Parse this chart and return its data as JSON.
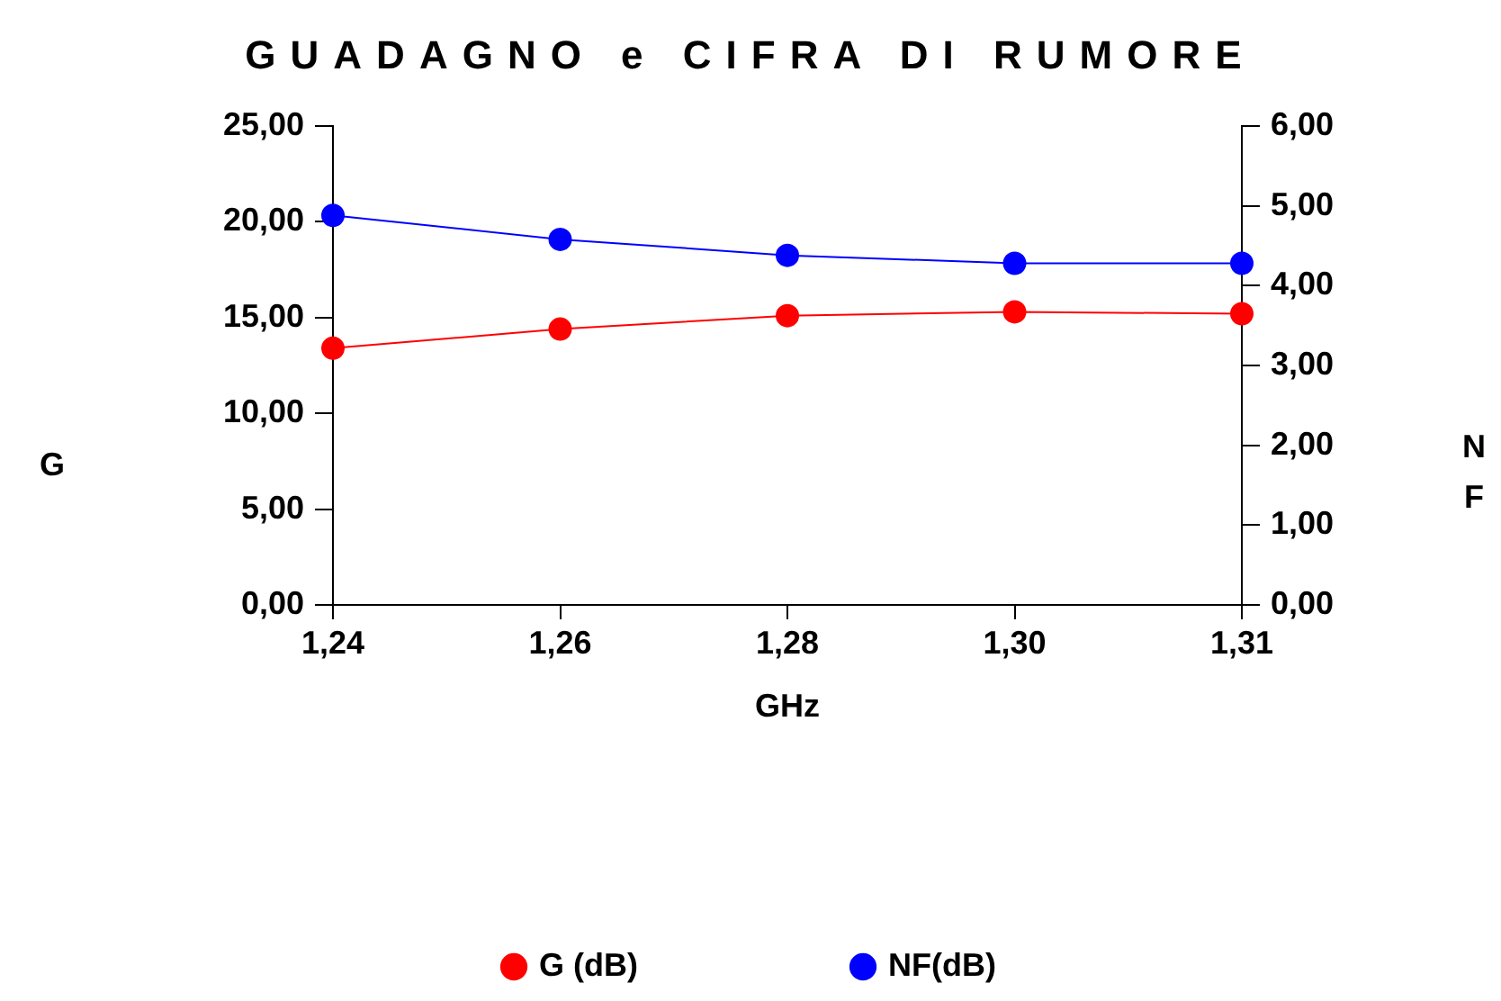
{
  "chart_data": {
    "type": "line",
    "title": "GUADAGNO e CIFRA DI RUMORE",
    "xlabel": "GHz",
    "ylabel": "G",
    "y2label": "NF",
    "categories": [
      "1,24",
      "1,26",
      "1,28",
      "1,30",
      "1,31"
    ],
    "series": [
      {
        "name": "G (dB)",
        "color": "#ff0000",
        "values": [
          13.4,
          14.4,
          15.1,
          15.3,
          15.2
        ]
      },
      {
        "name": "NF(dB)",
        "color": "#0000ff",
        "axis": "y2",
        "values": [
          4.88,
          4.58,
          4.38,
          4.28,
          4.28
        ]
      }
    ],
    "ylim": [
      0,
      25
    ],
    "yticks": [
      {
        "value": 0,
        "label": "0,00"
      },
      {
        "value": 5,
        "label": "5,00"
      },
      {
        "value": 10,
        "label": "10,00"
      },
      {
        "value": 15,
        "label": "15,00"
      },
      {
        "value": 20,
        "label": "20,00"
      },
      {
        "value": 25,
        "label": "25,00"
      }
    ],
    "y2lim": [
      0,
      6
    ],
    "y2ticks": [
      {
        "value": 0,
        "label": "0,00"
      },
      {
        "value": 1,
        "label": "1,00"
      },
      {
        "value": 2,
        "label": "2,00"
      },
      {
        "value": 3,
        "label": "3,00"
      },
      {
        "value": 4,
        "label": "4,00"
      },
      {
        "value": 5,
        "label": "5,00"
      },
      {
        "value": 6,
        "label": "6,00"
      }
    ],
    "grid": false,
    "legend": "bottom",
    "marker": "circle",
    "line_style": "solid"
  }
}
